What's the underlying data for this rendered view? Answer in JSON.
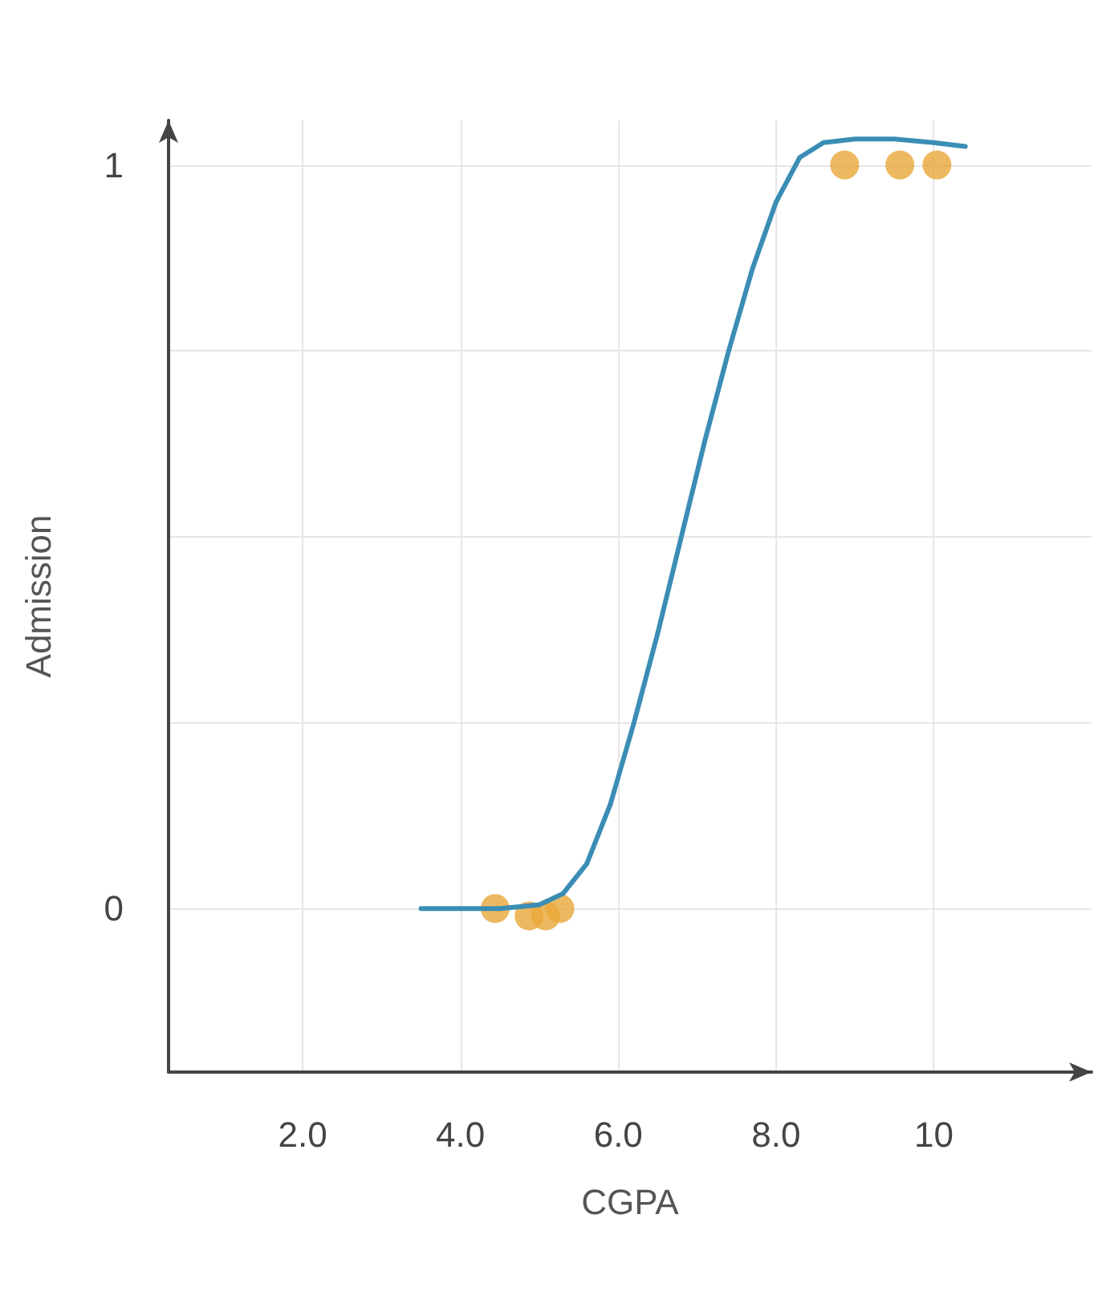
{
  "chart_data": {
    "type": "scatter",
    "xlabel": "CGPA",
    "ylabel": "Admission",
    "xlim": [
      0.3,
      12
    ],
    "ylim": [
      -0.22,
      1.06
    ],
    "xticks": [
      {
        "value": 2,
        "label": "2.0"
      },
      {
        "value": 4,
        "label": "4.0"
      },
      {
        "value": 6,
        "label": "6.0"
      },
      {
        "value": 8,
        "label": "8.0"
      },
      10
    ],
    "yticks": [
      0,
      {
        "value": 0.25,
        "label": null
      },
      {
        "value": 0.5,
        "label": null
      },
      {
        "value": 0.75,
        "label": null
      },
      1
    ],
    "grid": true,
    "series": [
      {
        "type": "line",
        "color": "#3a8db5",
        "marker": "none",
        "line_style": "solid",
        "x": [
          3.5,
          4.5,
          5.0,
          5.3,
          5.6,
          5.9,
          6.2,
          6.5,
          6.8,
          7.1,
          7.4,
          7.7,
          8.0,
          8.3,
          8.6,
          9.0,
          9.5,
          10.0,
          10.4
        ],
        "values": [
          0,
          0,
          0.005,
          0.02,
          0.06,
          0.14,
          0.25,
          0.37,
          0.5,
          0.63,
          0.75,
          0.86,
          0.95,
          1.01,
          1.03,
          1.035,
          1.035,
          1.03,
          1.025
        ]
      },
      {
        "color": "#e8a838",
        "marker": "circle",
        "x": [
          4.44,
          4.87,
          5.08,
          5.26,
          8.87,
          9.57,
          10.04
        ],
        "values": [
          0,
          -0.01,
          -0.01,
          0,
          1,
          1,
          1
        ]
      }
    ]
  }
}
